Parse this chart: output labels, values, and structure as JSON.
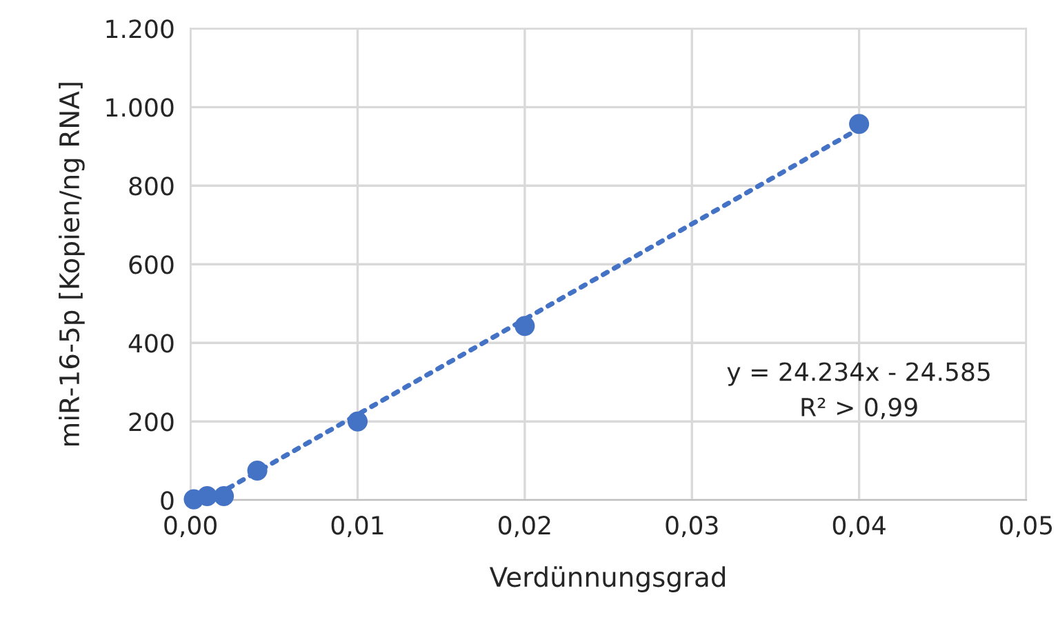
{
  "chart_data": {
    "type": "scatter",
    "xlabel": "Verdünnungsgrad",
    "ylabel": "miR-16-5p [Kopien/ng RNA]",
    "series": [
      {
        "color": "#4472c4",
        "marker": "circle",
        "x": [
          0.0002,
          0.001,
          0.002,
          0.004,
          0.01,
          0.02,
          0.04
        ],
        "values": [
          2,
          10,
          10,
          75,
          200,
          443,
          957
        ]
      },
      {
        "type": "line",
        "color": "#4472c4",
        "line_style": "dotted",
        "marker": "none",
        "x": [
          0.0016,
          0.04
        ],
        "values": [
          14,
          945
        ]
      }
    ],
    "annotations": [
      "y = 24.234x - 24.585\nR² > 0,99"
    ],
    "xlim": [
      0,
      0.05
    ],
    "ylim": [
      0,
      1200
    ],
    "xticks": [
      {
        "value": 0,
        "label": "0,00"
      },
      {
        "value": 0.01,
        "label": "0,01"
      },
      {
        "value": 0.02,
        "label": "0,02"
      },
      {
        "value": 0.03,
        "label": "0,03"
      },
      {
        "value": 0.04,
        "label": "0,04"
      },
      {
        "value": 0.05,
        "label": "0,05"
      }
    ],
    "yticks": [
      0,
      200,
      400,
      600,
      800,
      {
        "value": 1000,
        "label": "1.000"
      },
      {
        "value": 1200,
        "label": "1.200"
      }
    ],
    "grid": true,
    "legend": false
  }
}
